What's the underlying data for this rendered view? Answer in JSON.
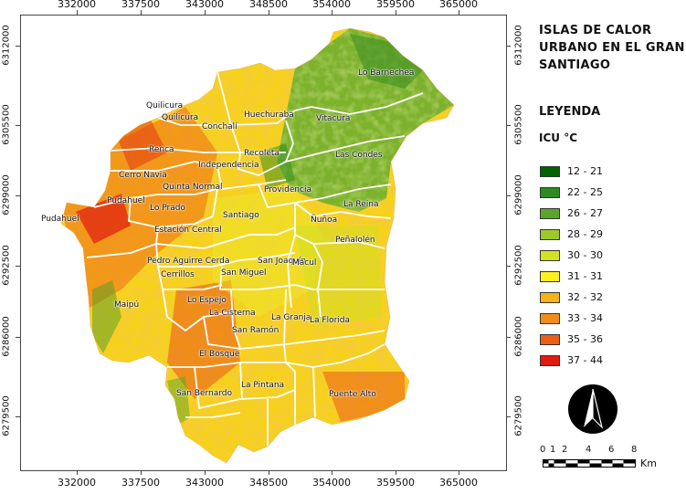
{
  "title": "ISLAS DE CALOR URBANO EN EL GRAN SANTIAGO",
  "legend": {
    "title": "LEYENDA",
    "subtitle": "ICU °C",
    "items": [
      {
        "label": "12 - 21",
        "color": "#006400"
      },
      {
        "label": "22 - 25",
        "color": "#2e8b1f"
      },
      {
        "label": "26 - 27",
        "color": "#5aa62a"
      },
      {
        "label": "28 - 29",
        "color": "#9dc72b"
      },
      {
        "label": "30 - 30",
        "color": "#d4e21f"
      },
      {
        "label": "31 - 31",
        "color": "#fff01f"
      },
      {
        "label": "32 - 32",
        "color": "#f3b31b"
      },
      {
        "label": "33 - 34",
        "color": "#f28c1a"
      },
      {
        "label": "35 - 36",
        "color": "#ec5f17"
      },
      {
        "label": "37 - 44",
        "color": "#e01b10"
      }
    ]
  },
  "axis_x_ticks": [
    "332000",
    "337500",
    "343000",
    "348500",
    "354000",
    "359500",
    "365000"
  ],
  "axis_y_ticks": [
    "6312000",
    "6305500",
    "6299000",
    "6292500",
    "6286000",
    "6279500"
  ],
  "scale_bar": {
    "numbers": [
      "0",
      "1",
      "2",
      "4",
      "6",
      "8"
    ],
    "unit": "Km"
  },
  "north_arrow": {
    "icon": "north-arrow-icon"
  },
  "communes": [
    "Lo Barnechea",
    "Quilicura",
    "Quilicura",
    "Huechuraba",
    "Conchalí",
    "Vitacura",
    "Renca",
    "Recoleta",
    "Las Condes",
    "Independencia",
    "Cerro Navia",
    "Quinta Normal",
    "Providencia",
    "Pudahuel",
    "La Reina",
    "Pudahuel",
    "Lo Prado",
    "Santiago",
    "Ñuñoa",
    "Estación Central",
    "Peñalolén",
    "Pedro Aguirre Cerda",
    "San Joaquín",
    "Macul",
    "Cerrillos",
    "San Miguel",
    "Maipú",
    "Lo Espejo",
    "La Cisterna",
    "La Granja",
    "La Florida",
    "San Ramón",
    "El Bosque",
    "La Pintana",
    "San Bernardo",
    "Puente Alto"
  ]
}
